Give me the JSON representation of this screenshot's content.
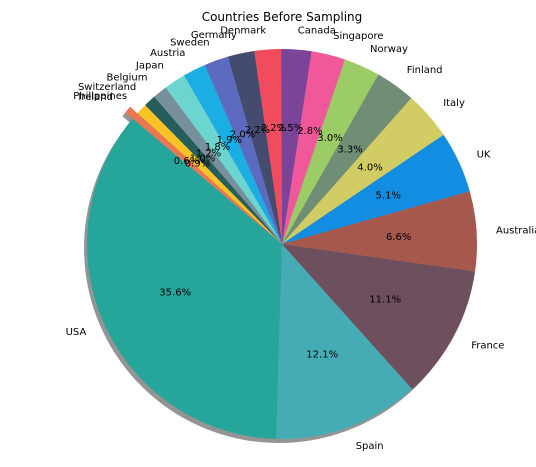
{
  "chart_data": {
    "type": "pie",
    "title": "Countries Before Sampling",
    "start_angle_deg": 140,
    "direction": "counterclockwise",
    "shadow": true,
    "explode": {
      "Ireland": 0.05
    },
    "slices": [
      {
        "label": "USA",
        "value": 35.6,
        "pct_label": "35.6%",
        "color": "#26a69a"
      },
      {
        "label": "Spain",
        "value": 12.1,
        "pct_label": "12.1%",
        "color": "#45abb4"
      },
      {
        "label": "France",
        "value": 11.1,
        "pct_label": "11.1%",
        "color": "#6d4f5e"
      },
      {
        "label": "Australia",
        "value": 6.6,
        "pct_label": "6.6%",
        "color": "#a6584c"
      },
      {
        "label": "UK",
        "value": 5.1,
        "pct_label": "5.1%",
        "color": "#138de2"
      },
      {
        "label": "Italy",
        "value": 4.0,
        "pct_label": "4.0%",
        "color": "#d2cc64"
      },
      {
        "label": "Finland",
        "value": 3.3,
        "pct_label": "3.3%",
        "color": "#708d75"
      },
      {
        "label": "Norway",
        "value": 3.0,
        "pct_label": "3.0%",
        "color": "#9ccc65"
      },
      {
        "label": "Singapore",
        "value": 2.8,
        "pct_label": "2.8%",
        "color": "#f0589a"
      },
      {
        "label": "Canada",
        "value": 2.5,
        "pct_label": "2.5%",
        "color": "#7b4499"
      },
      {
        "label": "Denmark",
        "value": 2.2,
        "pct_label": "2.2%",
        "color": "#f14c5e"
      },
      {
        "label": "Germany",
        "value": 2.2,
        "pct_label": "2.2%",
        "color": "#434b6e"
      },
      {
        "label": "Sweden",
        "value": 2.0,
        "pct_label": "2.0%",
        "color": "#5c6bc0"
      },
      {
        "label": "Austria",
        "value": 1.9,
        "pct_label": "1.9%",
        "color": "#1aaee4"
      },
      {
        "label": "Japan",
        "value": 1.8,
        "pct_label": "1.8%",
        "color": "#6dd5d0"
      },
      {
        "label": "Belgium",
        "value": 1.2,
        "pct_label": "1.2%",
        "color": "#78909c"
      },
      {
        "label": "Switzerland",
        "value": 1.0,
        "pct_label": "1.0%",
        "color": "#255e5b"
      },
      {
        "label": "Philippines",
        "value": 0.9,
        "pct_label": "0.9%",
        "color": "#f7c325"
      },
      {
        "label": "Ireland",
        "value": 0.6,
        "pct_label": "0.6%",
        "color": "#ed7551"
      }
    ]
  }
}
